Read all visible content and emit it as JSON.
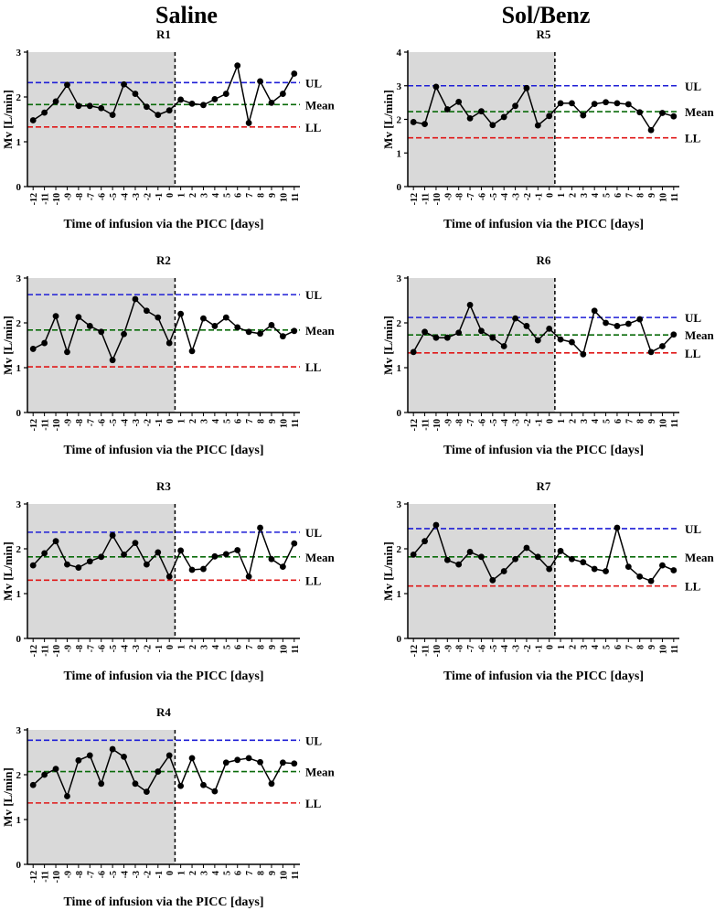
{
  "group_titles": {
    "left": "Saline",
    "right": "Sol/Benz"
  },
  "chart_data": [
    {
      "type": "line",
      "title": "R1",
      "xlabel": "Time of infusion via the PICC [days]",
      "ylabel": "Mv [L/min]",
      "ylim": [
        0,
        3
      ],
      "yticks": [
        0,
        1,
        2,
        3
      ],
      "x": [
        -12,
        -11,
        -10,
        -9,
        -8,
        -7,
        -6,
        -5,
        -4,
        -3,
        -2,
        -1,
        0,
        1,
        2,
        3,
        4,
        5,
        6,
        7,
        8,
        9,
        10,
        11
      ],
      "values": [
        1.48,
        1.65,
        1.9,
        2.27,
        1.8,
        1.8,
        1.75,
        1.6,
        2.28,
        2.07,
        1.78,
        1.6,
        1.7,
        1.94,
        1.85,
        1.82,
        1.95,
        2.07,
        2.7,
        1.42,
        2.35,
        1.87,
        2.07,
        2.52
      ],
      "shaded_until": 0.5,
      "reference_lines": [
        {
          "label": "UL",
          "value": 2.32,
          "color": "#1f1fd6"
        },
        {
          "label": "Mean",
          "value": 1.83,
          "color": "#0a6b0a"
        },
        {
          "label": "LL",
          "value": 1.33,
          "color": "#e01818"
        }
      ]
    },
    {
      "type": "line",
      "title": "R5",
      "xlabel": "Time of infusion via the PICC [days]",
      "ylabel": "Mv [L/min]",
      "ylim": [
        0,
        4
      ],
      "yticks": [
        0,
        1,
        2,
        3,
        4
      ],
      "x": [
        -12,
        -11,
        -10,
        -9,
        -8,
        -7,
        -6,
        -5,
        -4,
        -3,
        -2,
        -1,
        0,
        1,
        2,
        3,
        4,
        5,
        6,
        7,
        8,
        9,
        10,
        11
      ],
      "values": [
        1.92,
        1.86,
        2.97,
        2.3,
        2.52,
        2.03,
        2.24,
        1.83,
        2.07,
        2.4,
        2.93,
        1.82,
        2.1,
        2.48,
        2.48,
        2.12,
        2.46,
        2.51,
        2.48,
        2.45,
        2.21,
        1.68,
        2.19,
        2.09
      ],
      "shaded_until": 0.5,
      "reference_lines": [
        {
          "label": "UL",
          "value": 3.0,
          "color": "#1f1fd6"
        },
        {
          "label": "Mean",
          "value": 2.23,
          "color": "#0a6b0a"
        },
        {
          "label": "LL",
          "value": 1.45,
          "color": "#e01818"
        }
      ]
    },
    {
      "type": "line",
      "title": "R2",
      "xlabel": "Time of infusion via the PICC [days]",
      "ylabel": "Mv [L/min]",
      "ylim": [
        0,
        3
      ],
      "yticks": [
        0,
        1,
        2,
        3
      ],
      "x": [
        -12,
        -11,
        -10,
        -9,
        -8,
        -7,
        -6,
        -5,
        -4,
        -3,
        -2,
        -1,
        0,
        1,
        2,
        3,
        4,
        5,
        6,
        7,
        8,
        9,
        10,
        11
      ],
      "values": [
        1.42,
        1.55,
        2.15,
        1.35,
        2.13,
        1.93,
        1.8,
        1.17,
        1.75,
        2.53,
        2.27,
        2.12,
        1.55,
        2.2,
        1.37,
        2.1,
        1.93,
        2.12,
        1.9,
        1.8,
        1.76,
        1.95,
        1.7,
        1.82
      ],
      "shaded_until": 0.5,
      "reference_lines": [
        {
          "label": "UL",
          "value": 2.63,
          "color": "#1f1fd6"
        },
        {
          "label": "Mean",
          "value": 1.84,
          "color": "#0a6b0a"
        },
        {
          "label": "LL",
          "value": 1.02,
          "color": "#e01818"
        }
      ]
    },
    {
      "type": "line",
      "title": "R6",
      "xlabel": "Time of infusion via the PICC [days]",
      "ylabel": "Mv [L/min]",
      "ylim": [
        0,
        3
      ],
      "yticks": [
        0,
        1,
        2,
        3
      ],
      "x": [
        -12,
        -11,
        -10,
        -9,
        -8,
        -7,
        -6,
        -5,
        -4,
        -3,
        -2,
        -1,
        0,
        1,
        2,
        3,
        4,
        5,
        6,
        7,
        8,
        9,
        10,
        11
      ],
      "values": [
        1.35,
        1.8,
        1.67,
        1.67,
        1.78,
        2.4,
        1.82,
        1.67,
        1.48,
        2.1,
        1.93,
        1.61,
        1.87,
        1.63,
        1.57,
        1.3,
        2.27,
        2.0,
        1.93,
        1.98,
        2.08,
        1.35,
        1.48,
        1.74
      ],
      "shaded_until": 0.5,
      "reference_lines": [
        {
          "label": "UL",
          "value": 2.12,
          "color": "#1f1fd6"
        },
        {
          "label": "Mean",
          "value": 1.73,
          "color": "#0a6b0a"
        },
        {
          "label": "LL",
          "value": 1.33,
          "color": "#e01818"
        }
      ]
    },
    {
      "type": "line",
      "title": "R3",
      "xlabel": "Time of infusion via the PICC [days]",
      "ylabel": "Mv [L/min]",
      "ylim": [
        0,
        3
      ],
      "yticks": [
        0,
        1,
        2,
        3
      ],
      "x": [
        -12,
        -11,
        -10,
        -9,
        -8,
        -7,
        -6,
        -5,
        -4,
        -3,
        -2,
        -1,
        0,
        1,
        2,
        3,
        4,
        5,
        6,
        7,
        8,
        9,
        10,
        11
      ],
      "values": [
        1.63,
        1.9,
        2.17,
        1.65,
        1.58,
        1.72,
        1.82,
        2.3,
        1.87,
        2.13,
        1.65,
        1.92,
        1.38,
        1.96,
        1.53,
        1.55,
        1.83,
        1.88,
        1.97,
        1.38,
        2.47,
        1.77,
        1.6,
        2.12
      ],
      "shaded_until": 0.5,
      "reference_lines": [
        {
          "label": "UL",
          "value": 2.37,
          "color": "#1f1fd6"
        },
        {
          "label": "Mean",
          "value": 1.82,
          "color": "#0a6b0a"
        },
        {
          "label": "LL",
          "value": 1.3,
          "color": "#e01818"
        }
      ]
    },
    {
      "type": "line",
      "title": "R7",
      "xlabel": "Time of infusion via the PICC [days]",
      "ylabel": "Mv [L/min]",
      "ylim": [
        0,
        3
      ],
      "yticks": [
        0,
        1,
        2,
        3
      ],
      "x": [
        -12,
        -11,
        -10,
        -9,
        -8,
        -7,
        -6,
        -5,
        -4,
        -3,
        -2,
        -1,
        0,
        1,
        2,
        3,
        4,
        5,
        6,
        7,
        8,
        9,
        10,
        11
      ],
      "values": [
        1.87,
        2.17,
        2.53,
        1.75,
        1.65,
        1.93,
        1.82,
        1.3,
        1.5,
        1.77,
        2.02,
        1.82,
        1.55,
        1.95,
        1.77,
        1.7,
        1.55,
        1.5,
        2.47,
        1.6,
        1.38,
        1.28,
        1.63,
        1.52
      ],
      "shaded_until": 0.5,
      "reference_lines": [
        {
          "label": "UL",
          "value": 2.45,
          "color": "#1f1fd6"
        },
        {
          "label": "Mean",
          "value": 1.82,
          "color": "#0a6b0a"
        },
        {
          "label": "LL",
          "value": 1.17,
          "color": "#e01818"
        }
      ]
    },
    {
      "type": "line",
      "title": "R4",
      "xlabel": "Time of infusion via the PICC [days]",
      "ylabel": "Mv [L/min]",
      "ylim": [
        0,
        3
      ],
      "yticks": [
        0,
        1,
        2,
        3
      ],
      "x": [
        -12,
        -11,
        -10,
        -9,
        -8,
        -7,
        -6,
        -5,
        -4,
        -3,
        -2,
        -1,
        0,
        1,
        2,
        3,
        4,
        5,
        6,
        7,
        8,
        9,
        10,
        11
      ],
      "values": [
        1.77,
        2.0,
        2.13,
        1.52,
        2.32,
        2.43,
        1.8,
        2.57,
        2.4,
        1.8,
        1.62,
        2.07,
        2.43,
        1.75,
        2.37,
        1.77,
        1.63,
        2.27,
        2.33,
        2.37,
        2.28,
        1.8,
        2.27,
        2.25
      ],
      "shaded_until": 0.5,
      "reference_lines": [
        {
          "label": "UL",
          "value": 2.77,
          "color": "#1f1fd6"
        },
        {
          "label": "Mean",
          "value": 2.07,
          "color": "#0a6b0a"
        },
        {
          "label": "LL",
          "value": 1.37,
          "color": "#e01818"
        }
      ]
    }
  ]
}
